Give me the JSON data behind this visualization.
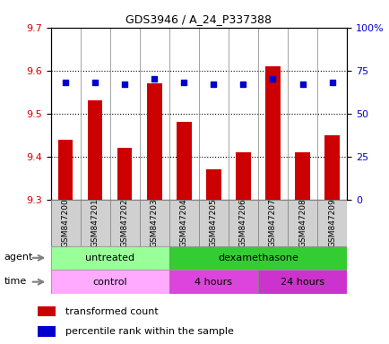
{
  "title": "GDS3946 / A_24_P337388",
  "samples": [
    "GSM847200",
    "GSM847201",
    "GSM847202",
    "GSM847203",
    "GSM847204",
    "GSM847205",
    "GSM847206",
    "GSM847207",
    "GSM847208",
    "GSM847209"
  ],
  "bar_values": [
    9.44,
    9.53,
    9.42,
    9.57,
    9.48,
    9.37,
    9.41,
    9.61,
    9.41,
    9.45
  ],
  "bar_bottom": 9.3,
  "percentile_values": [
    68,
    68,
    67,
    70,
    68,
    67,
    67,
    70,
    67,
    68
  ],
  "ylim_left": [
    9.3,
    9.7
  ],
  "ylim_right": [
    0,
    100
  ],
  "yticks_left": [
    9.3,
    9.4,
    9.5,
    9.6,
    9.7
  ],
  "yticks_right": [
    0,
    25,
    50,
    75,
    100
  ],
  "ytick_labels_right": [
    "0",
    "25",
    "50",
    "75",
    "100%"
  ],
  "bar_color": "#cc0000",
  "dot_color": "#0000cc",
  "agent_untreated_color": "#99ff99",
  "agent_dex_color": "#33cc33",
  "time_control_color": "#ffaaff",
  "time_4h_color": "#dd44dd",
  "time_24h_color": "#cc33cc",
  "agent_untreated_label": "untreated",
  "agent_dex_label": "dexamethasone",
  "time_control_label": "control",
  "time_4h_label": "4 hours",
  "time_24h_label": "24 hours",
  "untreated_count": 4,
  "dex_4h_count": 3,
  "dex_24h_count": 3,
  "control_count": 4,
  "legend_bar_label": "transformed count",
  "legend_dot_label": "percentile rank within the sample",
  "tick_label_color_left": "#cc0000",
  "tick_label_color_right": "#0000cc"
}
